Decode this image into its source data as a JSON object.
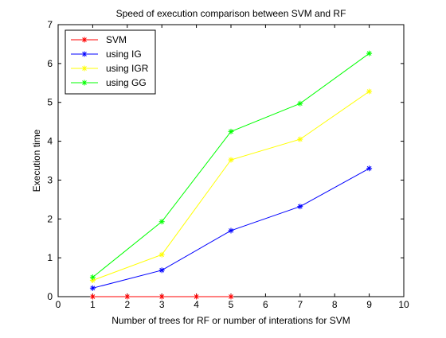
{
  "chart_data": {
    "type": "line",
    "title": "Speed of execution comparison between SVM and RF",
    "xlabel": "Number of trees for RF or number of interations for SVM",
    "ylabel": "Execution time",
    "xlim": [
      0,
      10
    ],
    "ylim": [
      0,
      7
    ],
    "x_ticks": [
      "0",
      "1",
      "2",
      "3",
      "4",
      "5",
      "6",
      "7",
      "8",
      "9",
      "10"
    ],
    "y_ticks": [
      "0",
      "1",
      "2",
      "3",
      "4",
      "5",
      "6",
      "7"
    ],
    "grid": false,
    "legend_position": "top-left",
    "marker": "asterisk",
    "series": [
      {
        "name": "SVM",
        "color": "#ff0000",
        "x": [
          1,
          2,
          3,
          4,
          5
        ],
        "values": [
          0.0,
          0.0,
          0.0,
          0.0,
          0.0
        ]
      },
      {
        "name": "using IG",
        "color": "#0000ff",
        "x": [
          1,
          3,
          5,
          7,
          9
        ],
        "values": [
          0.22,
          0.68,
          1.7,
          2.32,
          3.3
        ]
      },
      {
        "name": "using IGR",
        "color": "#ffff00",
        "x": [
          1,
          3,
          5,
          7,
          9
        ],
        "values": [
          0.42,
          1.08,
          3.52,
          4.05,
          5.28
        ]
      },
      {
        "name": "using GG",
        "color": "#00ff00",
        "x": [
          1,
          3,
          5,
          7,
          9
        ],
        "values": [
          0.5,
          1.93,
          4.25,
          4.97,
          6.26
        ]
      }
    ]
  }
}
